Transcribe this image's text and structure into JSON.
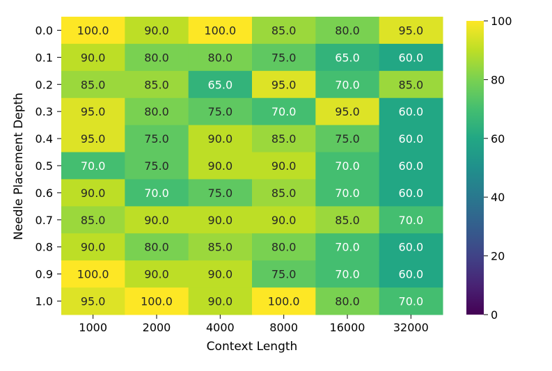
{
  "chart_data": {
    "type": "heatmap",
    "title": "",
    "xlabel": "Context Length",
    "ylabel": "Needle Placement Depth",
    "x_categories": [
      "1000",
      "2000",
      "4000",
      "8000",
      "16000",
      "32000"
    ],
    "y_categories": [
      "0.0",
      "0.1",
      "0.2",
      "0.3",
      "0.4",
      "0.5",
      "0.6",
      "0.7",
      "0.8",
      "0.9",
      "1.0"
    ],
    "values": [
      [
        100.0,
        90.0,
        100.0,
        85.0,
        80.0,
        95.0
      ],
      [
        90.0,
        80.0,
        80.0,
        75.0,
        65.0,
        60.0
      ],
      [
        85.0,
        85.0,
        65.0,
        95.0,
        70.0,
        85.0
      ],
      [
        95.0,
        80.0,
        75.0,
        70.0,
        95.0,
        60.0
      ],
      [
        95.0,
        75.0,
        90.0,
        85.0,
        75.0,
        60.0
      ],
      [
        70.0,
        75.0,
        90.0,
        90.0,
        70.0,
        60.0
      ],
      [
        90.0,
        70.0,
        75.0,
        85.0,
        70.0,
        60.0
      ],
      [
        85.0,
        90.0,
        90.0,
        90.0,
        85.0,
        70.0
      ],
      [
        90.0,
        80.0,
        85.0,
        80.0,
        70.0,
        60.0
      ],
      [
        100.0,
        90.0,
        90.0,
        75.0,
        70.0,
        60.0
      ],
      [
        95.0,
        100.0,
        90.0,
        100.0,
        80.0,
        70.0
      ]
    ],
    "value_format": "0.0",
    "colormap": "viridis",
    "vmin": 0,
    "vmax": 100,
    "colorbar_ticks": [
      "0",
      "20",
      "40",
      "60",
      "80",
      "100"
    ],
    "grid": false,
    "colors": {
      "dark_text": "#262626",
      "light_text": "#ffffff"
    }
  }
}
